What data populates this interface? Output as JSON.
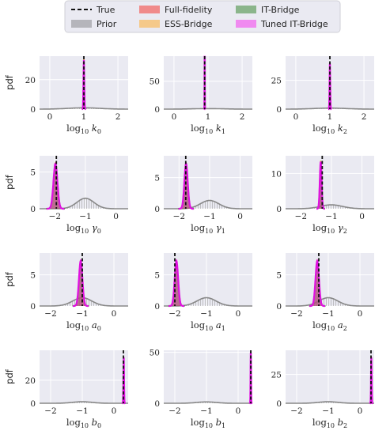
{
  "legend": [
    {
      "name": "True",
      "color": "#111111",
      "style": "dash"
    },
    {
      "name": "Prior",
      "color": "#b5b5bb",
      "style": "patch"
    },
    {
      "name": "Full-fidelity",
      "color": "#f08a8a",
      "style": "patch"
    },
    {
      "name": "ESS-Bridge",
      "color": "#f5c98a",
      "style": "patch"
    },
    {
      "name": "IT-Bridge",
      "color": "#8bb58b",
      "style": "patch"
    },
    {
      "name": "Tuned IT-Bridge",
      "color": "#f08af0",
      "style": "patch"
    }
  ],
  "colors": {
    "panel_bg": "#eaeaf2",
    "prior": "#888888",
    "tuned": "#e010e0",
    "it_bridge": "#2f8a2f",
    "full": "#e03a3a",
    "ess": "#f0a030",
    "true": "#111111"
  },
  "chart_data": [
    {
      "type": "area",
      "id": "k0",
      "xlabel": "log10 k0",
      "ylabel": "pdf",
      "xlim": [
        -0.3,
        2.3
      ],
      "ylim": [
        0,
        36
      ],
      "xticks": [
        0,
        1,
        2
      ],
      "yticks": [
        0,
        20
      ],
      "true_value": 1.0,
      "prior": {
        "mu": 1.0,
        "sigma": 0.45
      },
      "posterior": {
        "mu": 1.0,
        "sigma": 0.012
      }
    },
    {
      "type": "area",
      "id": "k1",
      "xlabel": "log10 k1",
      "ylabel": "",
      "xlim": [
        -0.3,
        2.3
      ],
      "ylim": [
        0,
        95
      ],
      "xticks": [
        0,
        1,
        2
      ],
      "yticks": [
        0,
        50
      ],
      "true_value": 0.9,
      "prior": {
        "mu": 1.0,
        "sigma": 0.45
      },
      "posterior": {
        "mu": 0.9,
        "sigma": 0.004
      }
    },
    {
      "type": "area",
      "id": "k2",
      "xlabel": "log10 k2",
      "ylabel": "",
      "xlim": [
        -0.3,
        2.3
      ],
      "ylim": [
        0,
        46
      ],
      "xticks": [
        0,
        1,
        2
      ],
      "yticks": [
        0,
        25
      ],
      "true_value": 1.0,
      "prior": {
        "mu": 1.0,
        "sigma": 0.45
      },
      "posterior": {
        "mu": 1.0,
        "sigma": 0.01
      }
    },
    {
      "type": "area",
      "id": "g0",
      "xlabel": "log10 γ0",
      "ylabel": "pdf",
      "xlim": [
        -2.5,
        0.4
      ],
      "ylim": [
        0,
        7.2
      ],
      "xticks": [
        -2,
        -1,
        0
      ],
      "yticks": [
        0,
        5
      ],
      "true_value": -1.95,
      "prior": {
        "mu": -1.0,
        "sigma": 0.28
      },
      "posterior": {
        "mu": -1.98,
        "sigma": 0.065
      }
    },
    {
      "type": "area",
      "id": "g1",
      "xlabel": "log10 γ1",
      "ylabel": "",
      "xlim": [
        -2.5,
        0.4
      ],
      "ylim": [
        0,
        8.5
      ],
      "xticks": [
        -2,
        -1,
        0
      ],
      "yticks": [
        0,
        5
      ],
      "true_value": -1.78,
      "prior": {
        "mu": -1.0,
        "sigma": 0.3
      },
      "posterior": {
        "mu": -1.77,
        "sigma": 0.055
      }
    },
    {
      "type": "area",
      "id": "g2",
      "xlabel": "log10 γ2",
      "ylabel": "",
      "xlim": [
        -2.5,
        0.4
      ],
      "ylim": [
        0,
        15
      ],
      "xticks": [
        -2,
        -1,
        0
      ],
      "yticks": [
        0,
        10
      ],
      "true_value": -1.3,
      "prior": {
        "mu": -1.0,
        "sigma": 0.36
      },
      "posterior": {
        "mu": -1.35,
        "sigma": 0.03
      }
    },
    {
      "type": "area",
      "id": "a0",
      "xlabel": "log10 a0",
      "ylabel": "pdf",
      "xlim": [
        -2.35,
        0.45
      ],
      "ylim": [
        0,
        8.5
      ],
      "xticks": [
        -2,
        -1,
        0
      ],
      "yticks": [
        0,
        5
      ],
      "true_value": -1.0,
      "prior": {
        "mu": -1.0,
        "sigma": 0.3
      },
      "posterior": {
        "mu": -1.05,
        "sigma": 0.055
      }
    },
    {
      "type": "area",
      "id": "a1",
      "xlabel": "log10 a1",
      "ylabel": "",
      "xlim": [
        -2.35,
        0.45
      ],
      "ylim": [
        0,
        8.5
      ],
      "xticks": [
        -2,
        -1,
        0
      ],
      "yticks": [
        0,
        5
      ],
      "true_value": -2.0,
      "prior": {
        "mu": -1.0,
        "sigma": 0.3
      },
      "posterior": {
        "mu": -1.95,
        "sigma": 0.055
      }
    },
    {
      "type": "area",
      "id": "a2",
      "xlabel": "log10 a2",
      "ylabel": "",
      "xlim": [
        -2.35,
        0.45
      ],
      "ylim": [
        0,
        8.5
      ],
      "xticks": [
        -2,
        -1,
        0
      ],
      "yticks": [
        0,
        5
      ],
      "true_value": -1.3,
      "prior": {
        "mu": -1.0,
        "sigma": 0.3
      },
      "posterior": {
        "mu": -1.35,
        "sigma": 0.055
      }
    },
    {
      "type": "area",
      "id": "b0",
      "xlabel": "log10 b0",
      "ylabel": "pdf",
      "xlim": [
        -2.35,
        0.45
      ],
      "ylim": [
        0,
        46
      ],
      "xticks": [
        -2,
        -1,
        0
      ],
      "yticks": [
        0,
        20
      ],
      "true_value": 0.3,
      "prior": {
        "mu": -1.0,
        "sigma": 0.3
      },
      "posterior": {
        "mu": 0.31,
        "sigma": 0.01
      }
    },
    {
      "type": "area",
      "id": "b1",
      "xlabel": "log10 b1",
      "ylabel": "",
      "xlim": [
        -2.35,
        0.45
      ],
      "ylim": [
        0,
        52
      ],
      "xticks": [
        -2,
        -1,
        0
      ],
      "yticks": [
        0,
        50
      ],
      "true_value": 0.4,
      "prior": {
        "mu": -1.0,
        "sigma": 0.3
      },
      "posterior": {
        "mu": 0.4,
        "sigma": 0.008
      }
    },
    {
      "type": "area",
      "id": "b2",
      "xlabel": "log10 b2",
      "ylabel": "",
      "xlim": [
        -2.35,
        0.45
      ],
      "ylim": [
        0,
        46
      ],
      "xticks": [
        -2,
        -1,
        0
      ],
      "yticks": [
        0,
        25
      ],
      "true_value": 0.35,
      "prior": {
        "mu": -1.0,
        "sigma": 0.3
      },
      "posterior": {
        "mu": 0.36,
        "sigma": 0.01
      }
    }
  ]
}
